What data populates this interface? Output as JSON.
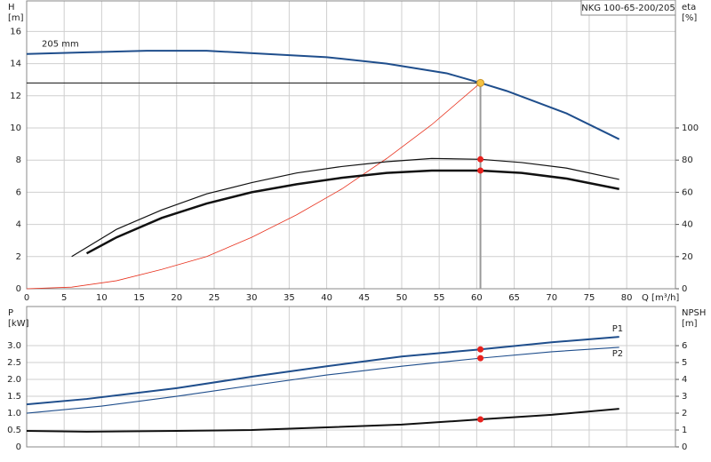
{
  "chart_data": [
    {
      "type": "line",
      "title": "NKG 100-65-200/205",
      "ylabel": "H",
      "yunit": "[m]",
      "y2label": "eta",
      "y2unit": "[%]",
      "xlabel": "Q [m³/h]",
      "xlim": [
        0,
        86.5
      ],
      "ylim": [
        0,
        17.9
      ],
      "y2lim": [
        0,
        179
      ],
      "xticks": [
        0,
        5,
        10,
        15,
        20,
        25,
        30,
        35,
        40,
        45,
        50,
        55,
        60,
        65,
        70,
        75,
        80
      ],
      "yticks": [
        0,
        2,
        4,
        6,
        8,
        10,
        12,
        14,
        16
      ],
      "y2ticks": [
        0,
        20,
        40,
        60,
        80,
        100
      ],
      "grid": true,
      "series": [
        {
          "name": "205 mm",
          "label_at": "start",
          "color": "#1f4e8c",
          "width": 2,
          "x": [
            0,
            8,
            16,
            24,
            32,
            40,
            48,
            56,
            60.5,
            64,
            72,
            79
          ],
          "values": [
            14.6,
            14.7,
            14.8,
            14.8,
            14.6,
            14.4,
            14.0,
            13.4,
            12.8,
            12.3,
            10.9,
            9.3
          ]
        },
        {
          "color": "#e8321e",
          "width": 0.8,
          "x": [
            0,
            6,
            12,
            18,
            24,
            30,
            36,
            42,
            48,
            54,
            60.5
          ],
          "values": [
            0,
            0.1,
            0.5,
            1.2,
            2.0,
            3.2,
            4.6,
            6.2,
            8.1,
            10.2,
            12.8
          ]
        },
        {
          "axis": "y2",
          "color": "#111111",
          "width": 1.2,
          "x": [
            6,
            12,
            18,
            24,
            30,
            36,
            42,
            48,
            54,
            60.5,
            66,
            72,
            79
          ],
          "values": [
            20,
            37,
            49,
            59,
            66,
            72,
            76,
            79,
            81,
            80.5,
            78.5,
            75,
            68
          ]
        },
        {
          "axis": "y2",
          "color": "#111111",
          "width": 2.5,
          "x": [
            8,
            12,
            18,
            24,
            30,
            36,
            42,
            48,
            54,
            60.5,
            66,
            72,
            79
          ],
          "values": [
            22,
            32,
            44,
            53,
            60,
            65,
            69,
            72,
            73.5,
            73.5,
            72,
            68.5,
            62
          ]
        }
      ],
      "duty_point": {
        "x": 60.5,
        "y": 12.8,
        "color": "#f5c242"
      },
      "markers": [
        {
          "x": 60.5,
          "y": 80.5,
          "axis": "y2",
          "color": "#e8221e"
        },
        {
          "x": 60.5,
          "y": 73.5,
          "axis": "y2",
          "color": "#e8221e"
        }
      ]
    },
    {
      "type": "line",
      "ylabel": "P",
      "yunit": "[kW]",
      "y2label": "NPSH",
      "y2unit": "[m]",
      "xlim": [
        0,
        86.5
      ],
      "ylim": [
        0,
        4.16
      ],
      "y2lim": [
        0,
        8.32
      ],
      "yticks": [
        0,
        0.5,
        {
          "value": 1,
          "label": "1.0"
        },
        1.5,
        {
          "value": 2,
          "label": "2.0"
        },
        2.5,
        {
          "value": 3,
          "label": "3.0"
        }
      ],
      "y2ticks": [
        0,
        1,
        2,
        3,
        4,
        5,
        6
      ],
      "grid": true,
      "series": [
        {
          "name": "P1",
          "label_at": "end",
          "color": "#1f4e8c",
          "width": 2,
          "x": [
            0,
            8,
            20,
            30,
            40,
            50,
            60.5,
            70,
            79
          ],
          "values": [
            1.26,
            1.42,
            1.74,
            2.08,
            2.39,
            2.68,
            2.89,
            3.1,
            3.26
          ]
        },
        {
          "name": "P2",
          "label_at": "end",
          "color": "#1f4e8c",
          "width": 1.1,
          "x": [
            0,
            10,
            20,
            30,
            40,
            50,
            60.5,
            70,
            79
          ],
          "values": [
            1.0,
            1.21,
            1.5,
            1.82,
            2.13,
            2.39,
            2.63,
            2.82,
            2.95
          ]
        },
        {
          "axis": "y2",
          "color": "#111111",
          "width": 2,
          "x": [
            0,
            8,
            20,
            30,
            40,
            50,
            60.5,
            70,
            79
          ],
          "values": [
            0.95,
            0.9,
            0.95,
            1.0,
            1.16,
            1.32,
            1.63,
            1.9,
            2.26
          ]
        }
      ],
      "markers": [
        {
          "x": 60.5,
          "y": 2.89,
          "color": "#e8221e"
        },
        {
          "x": 60.5,
          "y": 2.63,
          "color": "#e8221e"
        },
        {
          "x": 60.5,
          "y": 1.63,
          "axis": "y2",
          "color": "#e8221e"
        }
      ]
    }
  ]
}
